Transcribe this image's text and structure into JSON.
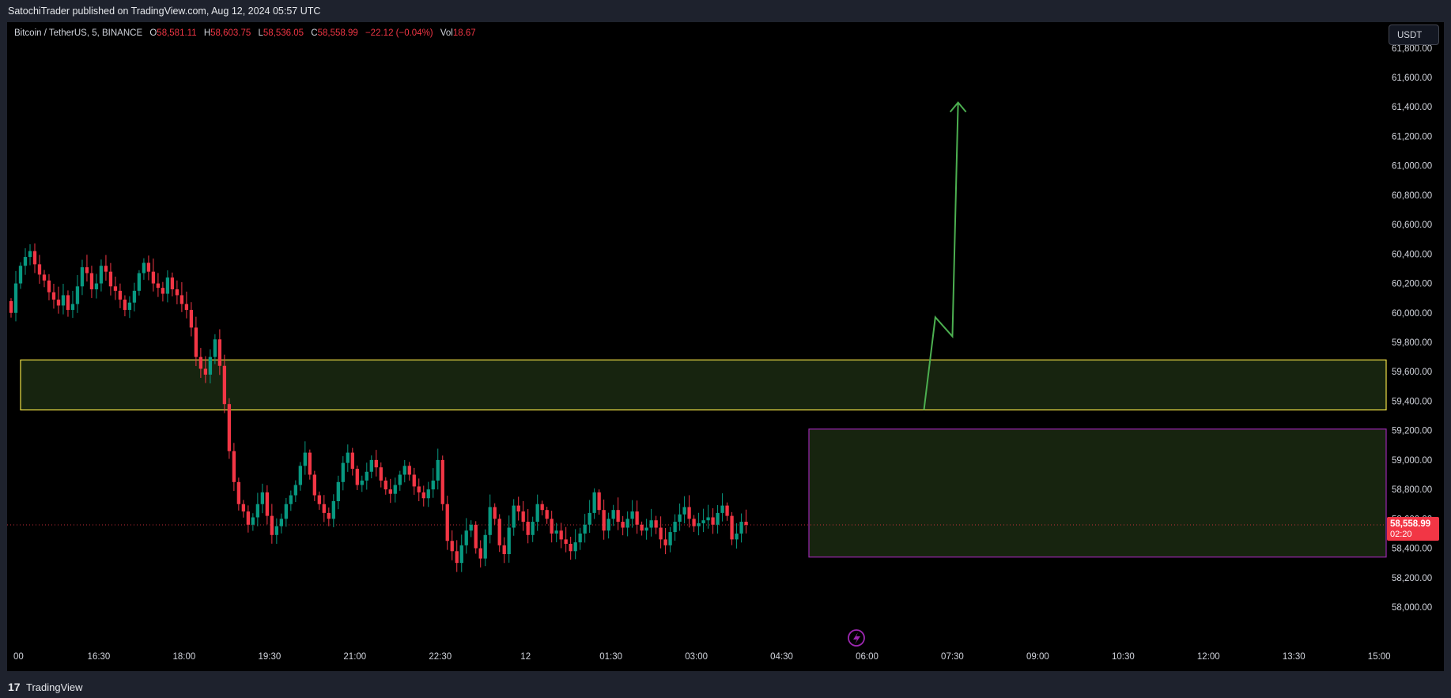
{
  "header": {
    "published": "SatochiTrader published on TradingView.com, Aug 12, 2024 05:57 UTC"
  },
  "legend": {
    "symbol": "Bitcoin / TetherUS, 5, BINANCE",
    "open_label": "O",
    "open": "58,581.11",
    "high_label": "H",
    "high": "58,603.75",
    "low_label": "L",
    "low": "58,536.05",
    "close_label": "C",
    "close": "58,558.99",
    "change": "−22.12 (−0.04%)",
    "vol_label": "Vol",
    "vol": "18.67"
  },
  "currency_button": "USDT",
  "price_label": {
    "price": "58,558.99",
    "countdown": "02:20"
  },
  "footer": {
    "logo": "17",
    "brand": "TradingView"
  },
  "colors": {
    "up": "#089981",
    "down": "#f23645",
    "zone_border": "#f0e046",
    "zone_fill": "#17240f",
    "demand_border": "#9c27b0",
    "projection": "#4caf50",
    "current_price": "#f23645"
  },
  "chart_data": {
    "type": "candlestick",
    "ylim": [
      57900,
      61680
    ],
    "x_range": [
      "15:00",
      "15:00"
    ],
    "y_ticks": [
      "58,000.00",
      "58,200.00",
      "58,400.00",
      "58,600.00",
      "58,800.00",
      "59,000.00",
      "59,200.00",
      "59,400.00",
      "59,600.00",
      "59,800.00",
      "60,000.00",
      "60,200.00",
      "60,400.00",
      "60,600.00",
      "60,800.00",
      "61,000.00",
      "61,200.00",
      "61,400.00",
      "61,600.00",
      "61,800.00"
    ],
    "x_ticks": [
      "00",
      "16:30",
      "18:00",
      "19:30",
      "21:00",
      "22:30",
      "12",
      "01:30",
      "03:00",
      "04:30",
      "06:00",
      "07:30",
      "09:00",
      "10:30",
      "12:00",
      "13:30",
      "15:00"
    ],
    "current_price": 58558.99,
    "closes": [
      60000,
      60200,
      60320,
      60380,
      60420,
      60330,
      60260,
      60220,
      60140,
      60090,
      60050,
      60120,
      60020,
      60060,
      60180,
      60310,
      60270,
      60160,
      60200,
      60320,
      60280,
      60180,
      60150,
      60090,
      60020,
      60070,
      60150,
      60270,
      60340,
      60280,
      60200,
      60170,
      60130,
      60240,
      60160,
      60120,
      60060,
      60020,
      59900,
      59700,
      59620,
      59580,
      59700,
      59820,
      59640,
      59380,
      59060,
      58850,
      58700,
      58650,
      58560,
      58610,
      58700,
      58780,
      58620,
      58490,
      58550,
      58600,
      58700,
      58760,
      58830,
      58960,
      59050,
      58900,
      58760,
      58700,
      58640,
      58600,
      58720,
      58850,
      58980,
      59050,
      58940,
      58830,
      58860,
      58920,
      59000,
      58950,
      58860,
      58800,
      58770,
      58830,
      58900,
      58960,
      58900,
      58820,
      58780,
      58740,
      58800,
      58860,
      59000,
      58700,
      58450,
      58380,
      58300,
      58420,
      58520,
      58560,
      58400,
      58330,
      58490,
      58680,
      58600,
      58420,
      58360,
      58540,
      58690,
      58650,
      58580,
      58490,
      58580,
      58700,
      58660,
      58600,
      58500,
      58520,
      58460,
      58430,
      58380,
      58440,
      58500,
      58560,
      58640,
      58780,
      58660,
      58520,
      58600,
      58660,
      58580,
      58540,
      58600,
      58650,
      58560,
      58520,
      58540,
      58590,
      58540,
      58460,
      58420,
      58510,
      58580,
      58630,
      58680,
      58600,
      58550,
      58570,
      58590,
      58610,
      58560,
      58640,
      58690,
      58620,
      58460,
      58500,
      58580,
      58558.99
    ],
    "zones": [
      {
        "name": "supply-zone",
        "y_top": 59680,
        "y_bottom": 59340
      },
      {
        "name": "demand-zone",
        "y_top": 59210,
        "y_bottom": 58340
      }
    ],
    "projection_path": [
      [
        "07:00",
        59340
      ],
      [
        "07:12",
        59970
      ],
      [
        "07:30",
        59840
      ],
      [
        "07:36",
        61430
      ]
    ]
  }
}
